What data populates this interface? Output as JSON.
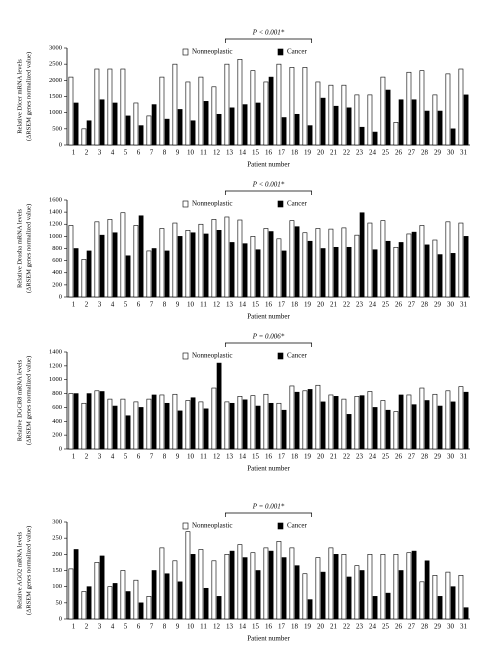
{
  "chart_data": [
    {
      "type": "bar",
      "ylabel": [
        "Relative Dicer mRNA levels",
        "(ΔRSEM genes normalized value)"
      ],
      "xlabel": "Patient number",
      "annotation": "P < 0.001*",
      "categories": [
        "1",
        "2",
        "3",
        "4",
        "5",
        "6",
        "7",
        "8",
        "9",
        "10",
        "11",
        "12",
        "13",
        "14",
        "15",
        "16",
        "17",
        "18",
        "19",
        "20",
        "21",
        "22",
        "23",
        "24",
        "25",
        "26",
        "27",
        "28",
        "29",
        "30",
        "31"
      ],
      "series": [
        {
          "name": "Nonneoplastic",
          "color": "#ffffff",
          "values": [
            2100,
            500,
            2350,
            2350,
            2350,
            1300,
            900,
            2100,
            2500,
            1950,
            2100,
            1800,
            2500,
            2650,
            2300,
            1950,
            2500,
            2400,
            2400,
            1950,
            1850,
            1850,
            1550,
            1550,
            2100,
            700,
            2250,
            2300,
            1550,
            2200,
            2350
          ]
        },
        {
          "name": "Cancer",
          "color": "#000000",
          "values": [
            1300,
            750,
            1400,
            1300,
            900,
            600,
            1250,
            800,
            1100,
            750,
            1350,
            950,
            1150,
            1250,
            1300,
            2100,
            850,
            950,
            600,
            1450,
            1200,
            1150,
            550,
            400,
            1700,
            1400,
            1400,
            1050,
            1050,
            500,
            1550
          ]
        }
      ],
      "ylim": [
        0,
        3000
      ],
      "yticks": [
        0,
        500,
        1000,
        1500,
        2000,
        2500,
        3000
      ]
    },
    {
      "type": "bar",
      "ylabel": [
        "Relative Drosha mRNA levels",
        "(ΔRSEM genes normalized value)"
      ],
      "xlabel": "Patient number",
      "annotation": "P < 0.001*",
      "categories": [
        "1",
        "2",
        "3",
        "4",
        "5",
        "6",
        "7",
        "8",
        "9",
        "10",
        "11",
        "12",
        "13",
        "14",
        "15",
        "16",
        "17",
        "18",
        "19",
        "20",
        "21",
        "22",
        "23",
        "24",
        "25",
        "26",
        "27",
        "28",
        "29",
        "30",
        "31"
      ],
      "series": [
        {
          "name": "Nonneoplastic",
          "color": "#ffffff",
          "values": [
            1180,
            620,
            1240,
            1280,
            1390,
            1180,
            760,
            1130,
            1220,
            1100,
            1200,
            1280,
            1320,
            1270,
            1000,
            1130,
            960,
            1260,
            1060,
            1130,
            1120,
            1140,
            1020,
            1220,
            1260,
            820,
            1040,
            1180,
            940,
            1240,
            1220
          ]
        },
        {
          "name": "Cancer",
          "color": "#000000",
          "values": [
            800,
            760,
            1020,
            1060,
            680,
            1340,
            800,
            760,
            1000,
            1060,
            1040,
            1100,
            900,
            880,
            780,
            1080,
            760,
            1160,
            920,
            800,
            820,
            820,
            1390,
            780,
            920,
            900,
            1070,
            860,
            700,
            720,
            1000
          ]
        }
      ],
      "ylim": [
        0,
        1600
      ],
      "yticks": [
        0,
        200,
        400,
        600,
        800,
        1000,
        1200,
        1400,
        1600
      ]
    },
    {
      "type": "bar",
      "ylabel": [
        "Relative DGCR8 mRNA levels",
        "(ΔRSEM genes normalized value)"
      ],
      "xlabel": "Patient number",
      "annotation": "P = 0.006*",
      "categories": [
        "1",
        "2",
        "3",
        "4",
        "5",
        "6",
        "7",
        "8",
        "9",
        "10",
        "11",
        "12",
        "13",
        "14",
        "15",
        "16",
        "17",
        "18",
        "19",
        "20",
        "21",
        "22",
        "23",
        "24",
        "25",
        "26",
        "27",
        "28",
        "29",
        "30",
        "31"
      ],
      "series": [
        {
          "name": "Nonneoplastic",
          "color": "#ffffff",
          "values": [
            800,
            660,
            840,
            720,
            720,
            680,
            720,
            780,
            790,
            700,
            680,
            880,
            680,
            760,
            770,
            790,
            660,
            910,
            840,
            920,
            780,
            720,
            760,
            830,
            700,
            540,
            780,
            880,
            790,
            840,
            900
          ]
        },
        {
          "name": "Cancer",
          "color": "#000000",
          "values": [
            800,
            800,
            830,
            620,
            480,
            600,
            780,
            660,
            550,
            740,
            580,
            1240,
            660,
            710,
            620,
            660,
            560,
            820,
            860,
            680,
            760,
            500,
            770,
            600,
            560,
            780,
            640,
            700,
            620,
            680,
            820
          ]
        }
      ],
      "ylim": [
        0,
        1400
      ],
      "yticks": [
        0,
        200,
        400,
        600,
        800,
        1000,
        1200,
        1400
      ]
    },
    {
      "type": "bar",
      "ylabel": [
        "Relative AGO2 mRNA levels",
        "(ΔRSEM genes normalized value)"
      ],
      "xlabel": "Patient number",
      "annotation": "P = 0.001*",
      "categories": [
        "1",
        "2",
        "3",
        "4",
        "5",
        "6",
        "7",
        "8",
        "9",
        "10",
        "11",
        "12",
        "13",
        "14",
        "15",
        "16",
        "17",
        "18",
        "19",
        "20",
        "21",
        "22",
        "23",
        "24",
        "25",
        "26",
        "27",
        "28",
        "29",
        "30",
        "31"
      ],
      "series": [
        {
          "name": "Nonneoplastic",
          "color": "#ffffff",
          "values": [
            155,
            85,
            175,
            100,
            150,
            120,
            70,
            220,
            180,
            270,
            215,
            180,
            200,
            230,
            205,
            220,
            240,
            220,
            140,
            190,
            220,
            200,
            165,
            200,
            200,
            200,
            205,
            115,
            135,
            145,
            135
          ]
        },
        {
          "name": "Cancer",
          "color": "#000000",
          "values": [
            215,
            100,
            195,
            110,
            85,
            50,
            150,
            140,
            115,
            200,
            95,
            70,
            210,
            190,
            150,
            210,
            190,
            165,
            60,
            145,
            200,
            130,
            150,
            70,
            80,
            150,
            210,
            180,
            70,
            100,
            35
          ]
        }
      ],
      "ylim": [
        0,
        300
      ],
      "yticks": [
        0,
        50,
        100,
        150,
        200,
        250,
        300
      ]
    }
  ]
}
